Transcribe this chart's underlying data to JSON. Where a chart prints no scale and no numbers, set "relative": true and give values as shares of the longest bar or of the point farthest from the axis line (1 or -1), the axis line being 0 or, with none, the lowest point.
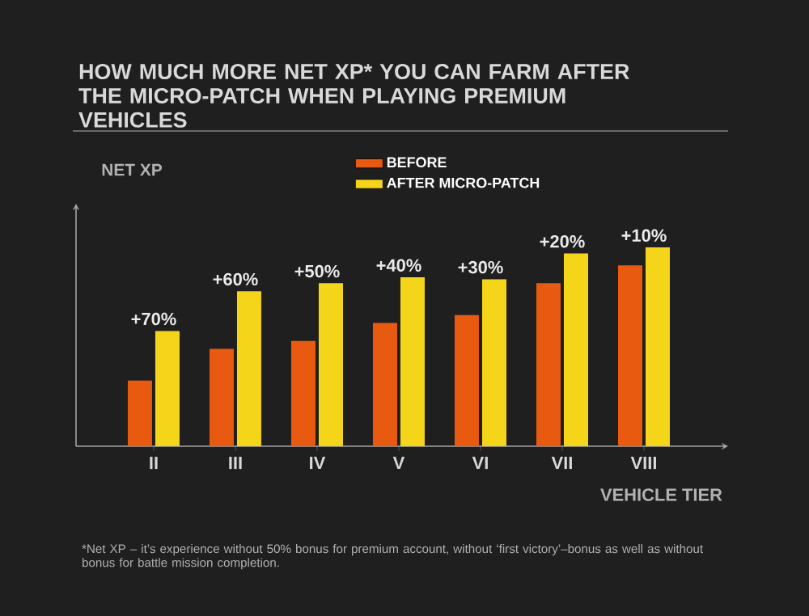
{
  "chart_data": {
    "type": "bar",
    "title": "HOW MUCH MORE NET XP* YOU CAN FARM AFTER THE MICRO-PATCH WHEN PLAYING PREMIUM VEHICLES",
    "ylabel": "NET XP",
    "xlabel": "VEHICLE TIER",
    "categories": [
      "II",
      "III",
      "IV",
      "V",
      "VI",
      "VII",
      "VIII"
    ],
    "relative": true,
    "series": [
      {
        "name": "BEFORE",
        "color": "#e85a10",
        "values": [
          0.33,
          0.49,
          0.53,
          0.62,
          0.66,
          0.82,
          0.91
        ]
      },
      {
        "name": "AFTER MICRO-PATCH",
        "color": "#f5d51a",
        "values": [
          0.58,
          0.78,
          0.82,
          0.85,
          0.84,
          0.97,
          1
        ]
      }
    ],
    "legend": "top",
    "annotations": [
      {
        "text": "+70%",
        "x": "II",
        "y": 0.58
      },
      {
        "text": "+60%",
        "x": "III",
        "y": 0.78
      },
      {
        "text": "+50%",
        "x": "IV",
        "y": 0.82
      },
      {
        "text": "+40%",
        "x": "V",
        "y": 0.85
      },
      {
        "text": "+30%",
        "x": "VI",
        "y": 0.84
      },
      {
        "text": "+20%",
        "x": "VII",
        "y": 0.97
      },
      {
        "text": "+10%",
        "x": "VIII",
        "y": 1
      },
      "*Net XP – it’s experience without 50% bonus for premium account, without ‘first victory’–bonus as well as without bonus for battle mission completion."
    ]
  }
}
